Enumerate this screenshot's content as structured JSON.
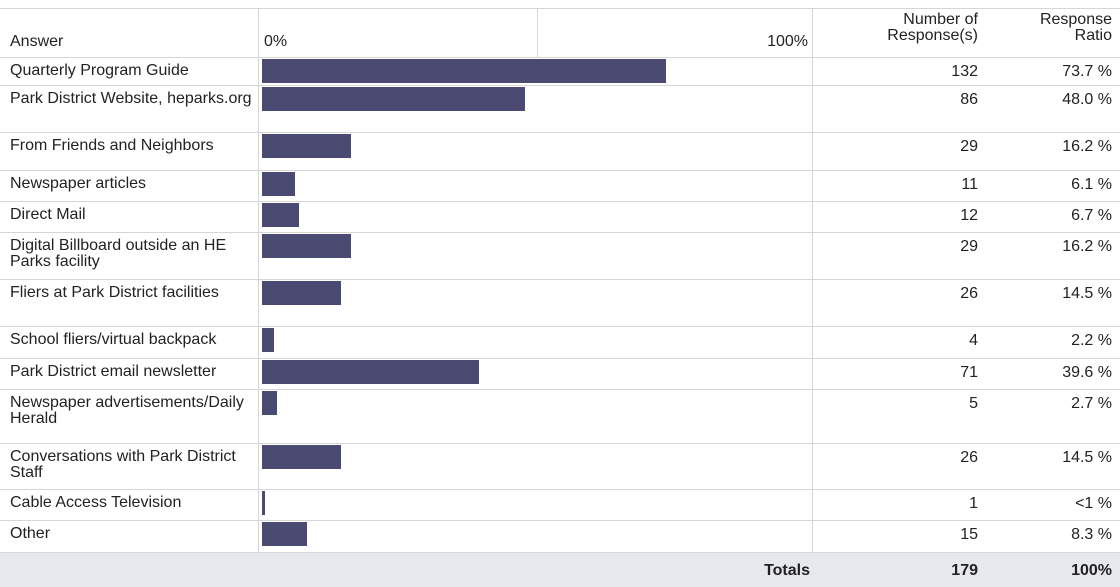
{
  "header": {
    "answer": "Answer",
    "count": "Number of Response(s)",
    "ratio": "Response Ratio"
  },
  "xlim": [
    0,
    100
  ],
  "xticks": [
    {
      "value": 0,
      "label": "0%"
    },
    {
      "value": 100,
      "label": "100%"
    }
  ],
  "color": "#4b4a72",
  "rows": [
    {
      "answer": "Quarterly Program Guide",
      "count": 132,
      "ratio": 73.7,
      "ratio_label": "73.7 %"
    },
    {
      "answer": "Park District Website, heparks.org",
      "count": 86,
      "ratio": 48.0,
      "ratio_label": "48.0 %"
    },
    {
      "answer": "From Friends and Neighbors",
      "count": 29,
      "ratio": 16.2,
      "ratio_label": "16.2 %"
    },
    {
      "answer": "Newspaper articles",
      "count": 11,
      "ratio": 6.1,
      "ratio_label": "6.1 %"
    },
    {
      "answer": "Direct Mail",
      "count": 12,
      "ratio": 6.7,
      "ratio_label": "6.7 %"
    },
    {
      "answer": "Digital Billboard outside an HE Parks facility",
      "count": 29,
      "ratio": 16.2,
      "ratio_label": "16.2 %"
    },
    {
      "answer": "Fliers at Park District facilities",
      "count": 26,
      "ratio": 14.5,
      "ratio_label": "14.5 %"
    },
    {
      "answer": "School fliers/virtual backpack",
      "count": 4,
      "ratio": 2.2,
      "ratio_label": "2.2 %"
    },
    {
      "answer": "Park District email newsletter",
      "count": 71,
      "ratio": 39.6,
      "ratio_label": "39.6 %"
    },
    {
      "answer": "Newspaper advertisements/Daily Herald",
      "count": 5,
      "ratio": 2.7,
      "ratio_label": "2.7 %"
    },
    {
      "answer": "Conversations with Park District Staff",
      "count": 26,
      "ratio": 14.5,
      "ratio_label": "14.5 %"
    },
    {
      "answer": "Cable Access Television",
      "count": 1,
      "ratio": 0.6,
      "ratio_label": "<1 %"
    },
    {
      "answer": "Other",
      "count": 15,
      "ratio": 8.3,
      "ratio_label": "8.3 %"
    }
  ],
  "totals": {
    "label": "Totals",
    "count": 179,
    "ratio_label": "100%"
  }
}
